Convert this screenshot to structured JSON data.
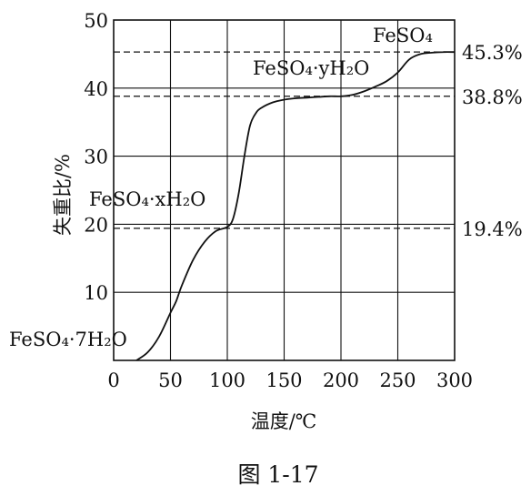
{
  "chart_data": {
    "type": "line",
    "xlabel": "温度/℃",
    "ylabel": "失重比/%",
    "xlim": [
      0,
      300
    ],
    "ylim": [
      0,
      50
    ],
    "x_ticks": [
      "0",
      "50",
      "100",
      "150",
      "200",
      "250",
      "300"
    ],
    "y_ticks": [
      "10",
      "20",
      "30",
      "40",
      "50"
    ],
    "grid": true,
    "series": [
      {
        "x": [
          20,
          30,
          40,
          50,
          55,
          60,
          70,
          80,
          90,
          100,
          105,
          110,
          115,
          120,
          125,
          130,
          140,
          150,
          160,
          170,
          180,
          190,
          200,
          210,
          220,
          230,
          240,
          250,
          260,
          270,
          280,
          290,
          300
        ],
        "y": [
          0,
          1.2,
          3.5,
          7.0,
          8.7,
          11.0,
          14.8,
          17.4,
          19.0,
          19.6,
          20.8,
          24.5,
          30.0,
          34.5,
          36.3,
          37.1,
          37.9,
          38.3,
          38.5,
          38.6,
          38.7,
          38.8,
          38.8,
          39.0,
          39.5,
          40.2,
          41.0,
          42.3,
          44.2,
          45.0,
          45.2,
          45.3,
          45.3
        ]
      }
    ],
    "reference_lines": [
      {
        "y": 45.3,
        "style": "dashed",
        "label": "45.3%"
      },
      {
        "y": 38.8,
        "style": "dashed",
        "label": "38.8%"
      },
      {
        "y": 19.4,
        "style": "dashed",
        "label": "19.4%"
      }
    ],
    "annotations": [
      {
        "text": "FeSO₄",
        "near": [
          250,
          49
        ]
      },
      {
        "text": "FeSO₄·yH₂O",
        "near": [
          160,
          42
        ]
      },
      {
        "text": "FeSO₄·xH₂O",
        "near": [
          45,
          22
        ]
      },
      {
        "text": "FeSO₄·7H₂O",
        "near": [
          0,
          3
        ]
      }
    ]
  },
  "caption": "图 1-17"
}
